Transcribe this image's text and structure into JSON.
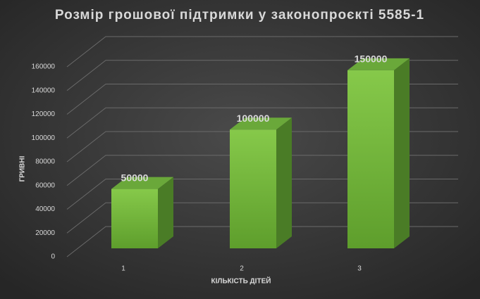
{
  "chart_data": {
    "type": "bar3d",
    "title": "Розмір грошової підтримки у законопроєкті 5585-1",
    "x_label": "КІЛЬКІСТЬ ДІТЕЙ",
    "y_label": "ГРИВНІ",
    "categories": [
      "1",
      "2",
      "3"
    ],
    "values": [
      50000,
      100000,
      150000
    ],
    "color": "#7cc242",
    "ylim": [
      0,
      160000
    ],
    "yticks": [
      0,
      20000,
      40000,
      60000,
      80000,
      100000,
      120000,
      140000,
      160000
    ],
    "grid": true
  }
}
